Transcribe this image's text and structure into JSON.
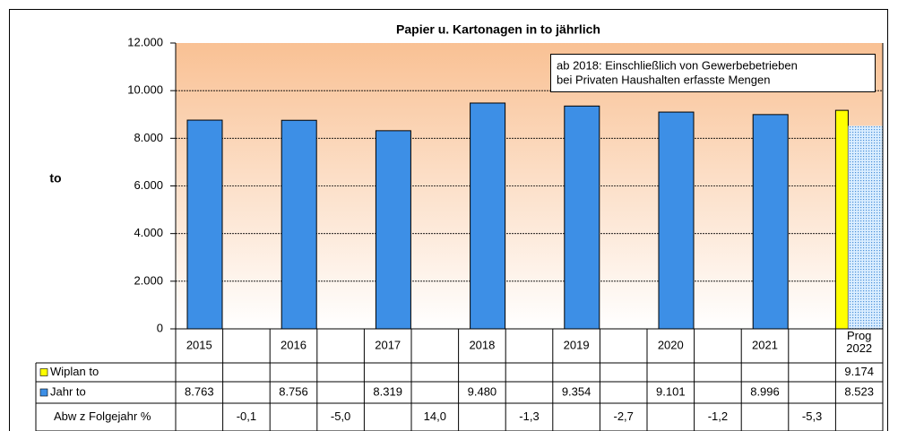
{
  "chart_data": {
    "type": "bar",
    "title": "Papier u. Kartonagen in to jährlich",
    "y_label": "to",
    "annotation": [
      "ab 2018: Einschließlich von Gewerbebetrieben",
      "bei Privaten Haushalten erfasste Mengen"
    ],
    "categories": [
      "2015",
      null,
      "2016",
      null,
      "2017",
      null,
      "2018",
      null,
      "2019",
      null,
      "2020",
      null,
      "2021",
      null,
      "Prog 2022"
    ],
    "series": [
      {
        "name": "Wiplan to",
        "color": "#ffff00",
        "values": [
          null,
          null,
          null,
          null,
          null,
          null,
          null,
          null,
          null,
          null,
          null,
          null,
          null,
          null,
          9174
        ],
        "value_labels": [
          null,
          null,
          null,
          null,
          null,
          null,
          null,
          null,
          null,
          null,
          null,
          null,
          null,
          null,
          "9.174"
        ]
      },
      {
        "name": "Jahr to",
        "color": "#3d8fe6",
        "values": [
          8763,
          null,
          8756,
          null,
          8319,
          null,
          9480,
          null,
          9354,
          null,
          9101,
          null,
          8996,
          null,
          8523
        ],
        "value_labels": [
          "8.763",
          null,
          "8.756",
          null,
          "8.319",
          null,
          "9.480",
          null,
          "9.354",
          null,
          "9.101",
          null,
          "8.996",
          null,
          "8.523"
        ]
      },
      {
        "name": "Abw z Folgejahr %",
        "values": [
          null,
          -0.1,
          null,
          -5.0,
          null,
          14.0,
          null,
          -1.3,
          null,
          -2.7,
          null,
          -1.2,
          null,
          -5.3,
          null
        ],
        "value_labels": [
          null,
          "-0,1",
          null,
          "-5,0",
          null,
          "14,0",
          null,
          "-1,3",
          null,
          "-2,7",
          null,
          "-1,2",
          null,
          "-5,3",
          null
        ]
      }
    ],
    "ylim": [
      0,
      12000
    ],
    "yticks": [
      0,
      {
        "value": 2000,
        "label": "2.000"
      },
      {
        "value": 4000,
        "label": "4.000"
      },
      {
        "value": 6000,
        "label": "6.000"
      },
      {
        "value": 8000,
        "label": "8.000"
      },
      {
        "value": 10000,
        "label": "10.000"
      },
      {
        "value": 12000,
        "label": "12.000"
      }
    ],
    "grid": true
  }
}
